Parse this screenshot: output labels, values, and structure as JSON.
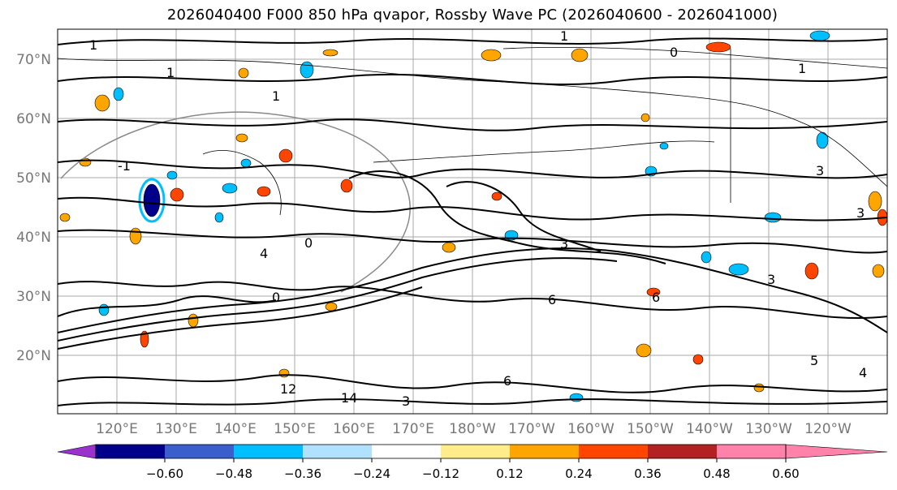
{
  "title": "2026040400 F000 850 hPa qvapor, Rossby Wave PC (2026040600 - 2026041000)",
  "lat_labels": [
    "70°N",
    "60°N",
    "50°N",
    "40°N",
    "30°N",
    "20°N"
  ],
  "lon_labels": [
    "120°E",
    "130°E",
    "140°E",
    "150°E",
    "160°E",
    "170°E",
    "180°W",
    "170°W",
    "160°W",
    "150°W",
    "140°W",
    "130°W",
    "120°W"
  ],
  "contour_labels": [
    "1",
    "1",
    "-1",
    "0",
    "1",
    "1",
    "3",
    "3",
    "0",
    "4",
    "3",
    "3",
    "6",
    "6",
    "1",
    "5",
    "4",
    "12",
    "14",
    "3",
    "0",
    "6"
  ],
  "colorbar": {
    "tick_labels": [
      "−0.60",
      "−0.48",
      "−0.36",
      "−0.24",
      "−0.12",
      "0.12",
      "0.24",
      "0.36",
      "0.48",
      "0.60"
    ],
    "colors": [
      "#9a32cd",
      "#00008b",
      "#3a5fcd",
      "#00bfff",
      "#b0e2ff",
      "#ffffff",
      "#ffec8b",
      "#ffa500",
      "#ff4500",
      "#b22222",
      "#ff82ab"
    ]
  }
}
